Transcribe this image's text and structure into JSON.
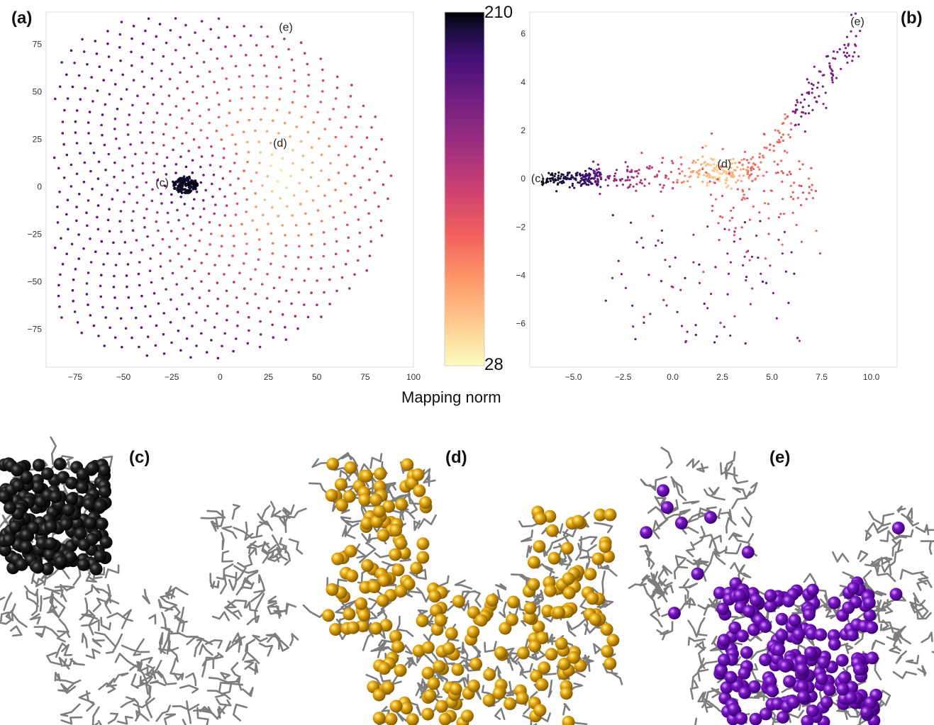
{
  "panel_labels": {
    "a": "(a)",
    "b": "(b)",
    "c": "(c)",
    "d": "(d)",
    "e": "(e)"
  },
  "colorbar": {
    "label": "Mapping norm",
    "max_label": "210",
    "min_label": "28",
    "min": 28,
    "max": 210,
    "colormap": "magma_r"
  },
  "chart_data": [
    {
      "id": "a",
      "type": "scatter",
      "title": "(a)",
      "xlabel": "",
      "ylabel": "",
      "xlim": [
        -90,
        100
      ],
      "ylim": [
        -95,
        92
      ],
      "xticks": [
        -75,
        -50,
        -25,
        0,
        25,
        50,
        75,
        100
      ],
      "yticks": [
        -75,
        -50,
        -25,
        0,
        25,
        50,
        75
      ],
      "xtick_labels": [
        "−75",
        "−50",
        "−25",
        "0",
        "25",
        "50",
        "75",
        "100"
      ],
      "ytick_labels": [
        "−75",
        "−50",
        "−25",
        "0",
        "25",
        "50",
        "75"
      ],
      "grid": false,
      "color_by": "Mapping norm",
      "description": "Phyllotaxis-like disk of about 900 points centered near (-17, 0); dense dark cluster at (-18, 1); lightest colors near (25, 10).",
      "annotations": [
        {
          "text": "(c)",
          "x": -30,
          "y": 2
        },
        {
          "text": "(d)",
          "x": 31,
          "y": 23
        },
        {
          "text": "(e)",
          "x": 34,
          "y": 84
        }
      ]
    },
    {
      "id": "b",
      "type": "scatter",
      "title": "(b)",
      "xlabel": "",
      "ylabel": "",
      "xlim": [
        -7.2,
        11.3
      ],
      "ylim": [
        -7.8,
        6.9
      ],
      "xticks": [
        -5.0,
        -2.5,
        0.0,
        2.5,
        5.0,
        7.5,
        10.0
      ],
      "yticks": [
        -6,
        -4,
        -2,
        0,
        2,
        4,
        6
      ],
      "xtick_labels": [
        "−5.0",
        "−2.5",
        "0.0",
        "2.5",
        "5.0",
        "7.5",
        "10.0"
      ],
      "ytick_labels": [
        "−6",
        "−4",
        "−2",
        "0",
        "2",
        "4",
        "6"
      ],
      "grid": false,
      "color_by": "Mapping norm",
      "description": "Dark cluster along y≈0 from x≈-6.5 to -3.5, light cluster near (2.3, 0.3), purple branch rising to (9, 6), scattered purple points below down to y≈-7.",
      "annotations": [
        {
          "text": "(c)",
          "x": -6.8,
          "y": 0
        },
        {
          "text": "(d)",
          "x": 2.6,
          "y": 0.6
        },
        {
          "text": "(e)",
          "x": 9.3,
          "y": 6.5
        }
      ]
    }
  ],
  "renders": {
    "c": {
      "color": "#111111",
      "description": "protein backbone with black spheres highlighted at top-left lobe"
    },
    "d": {
      "color": "#e0a70e",
      "description": "protein backbone with gold spheres spread across the structure"
    },
    "e": {
      "color": "#7a16c8",
      "description": "protein backbone with purple spheres concentrated in the lower-right region"
    }
  },
  "colors": {
    "stick": "#7d7d7d",
    "frame": "#dddddd",
    "tick_text": "#333333"
  }
}
